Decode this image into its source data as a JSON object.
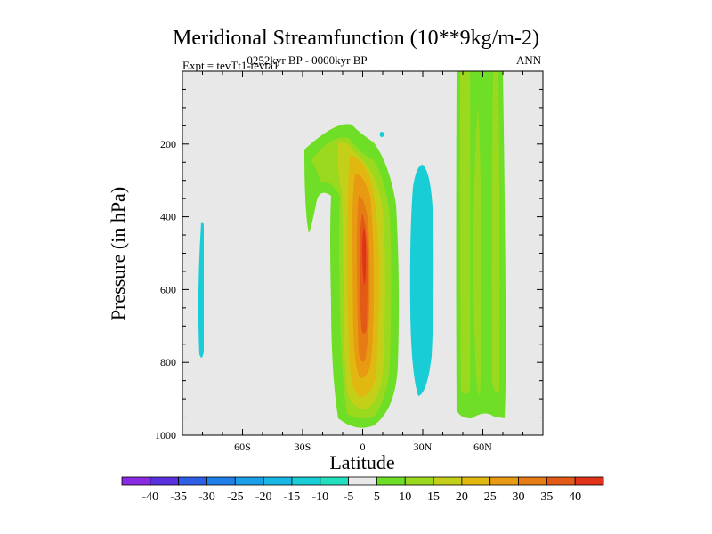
{
  "chart_data": {
    "type": "contour",
    "title": "Meridional Streamfunction (10**9kg/m-2)",
    "subtitle_center": "0252kyr BP - 0000kyr BP",
    "subtitle_left": "Expt = tevTt1-tevta1",
    "subtitle_right": "ANN",
    "xlabel": "Latitude",
    "ylabel": "Pressure (in hPa)",
    "xlim": [
      -90,
      90
    ],
    "ylim": [
      1000,
      0
    ],
    "x_tick_labels": [
      "60S",
      "30S",
      "0",
      "30N",
      "60N"
    ],
    "x_tick_values": [
      -60,
      -30,
      0,
      30,
      60
    ],
    "y_tick_labels": [
      "200",
      "400",
      "600",
      "800",
      "1000"
    ],
    "y_tick_values": [
      200,
      400,
      600,
      800,
      1000
    ],
    "colorbar_levels": [
      -40,
      -35,
      -30,
      -25,
      -20,
      -15,
      -10,
      -5,
      5,
      10,
      15,
      20,
      25,
      30,
      35,
      40
    ],
    "colorbar_colors": [
      "#8a2be2",
      "#5a2fe0",
      "#2d5fe6",
      "#1f7fe8",
      "#1a9fe8",
      "#17b7e6",
      "#18cdd6",
      "#22e0bf",
      "#e8e8e8",
      "#6fde27",
      "#9ad91d",
      "#c4cf1a",
      "#e0b80f",
      "#e89a12",
      "#e57c14",
      "#e35a16",
      "#e0331a"
    ],
    "features": [
      {
        "name": "neg-cell-60S",
        "center_lat": -78,
        "center_p": 600,
        "value": -5
      },
      {
        "name": "pos-cell-equator",
        "center_lat": 2,
        "center_p": 480,
        "value": 40
      },
      {
        "name": "neg-cell-25N",
        "center_lat": 29,
        "center_p": 560,
        "value": -5
      },
      {
        "name": "pos-cell-50-65N",
        "center_lat": 57,
        "center_p": 500,
        "value": 10
      }
    ]
  }
}
